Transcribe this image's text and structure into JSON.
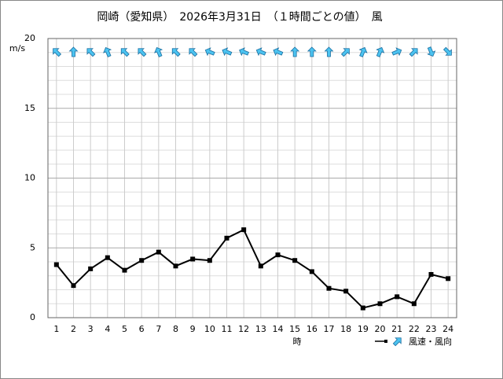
{
  "chart_data": {
    "type": "line",
    "title": "岡崎（愛知県）　2026年3月31日　（１時間ごとの値）　風",
    "y_label": "m/s",
    "x_label": "時",
    "legend_label": "風速・風向",
    "categories": [
      "1",
      "2",
      "3",
      "4",
      "5",
      "6",
      "7",
      "8",
      "9",
      "10",
      "11",
      "12",
      "13",
      "14",
      "15",
      "16",
      "17",
      "18",
      "19",
      "20",
      "21",
      "22",
      "23",
      "24"
    ],
    "values": [
      3.8,
      2.3,
      3.5,
      4.3,
      3.4,
      4.1,
      4.7,
      3.7,
      4.2,
      4.1,
      5.7,
      6.3,
      3.7,
      4.5,
      4.1,
      3.3,
      2.1,
      1.9,
      0.7,
      1.0,
      1.5,
      1.0,
      3.1,
      2.8
    ],
    "directions": [
      315,
      0,
      315,
      337.5,
      315,
      315,
      337.5,
      315,
      315,
      292.5,
      292.5,
      292.5,
      292.5,
      292.5,
      0,
      0,
      0,
      45,
      22.5,
      22.5,
      67.5,
      45,
      157.5,
      135
    ],
    "color": "#000000",
    "arrow_color": "#4cc3f0",
    "ylim": [
      0,
      20
    ],
    "yticks": [
      0,
      5,
      10,
      15,
      20
    ],
    "y_minor_ticks": [
      1,
      2,
      3,
      4,
      6,
      7,
      8,
      9,
      11,
      12,
      13,
      14,
      16,
      17,
      18,
      19
    ],
    "grid": true
  }
}
